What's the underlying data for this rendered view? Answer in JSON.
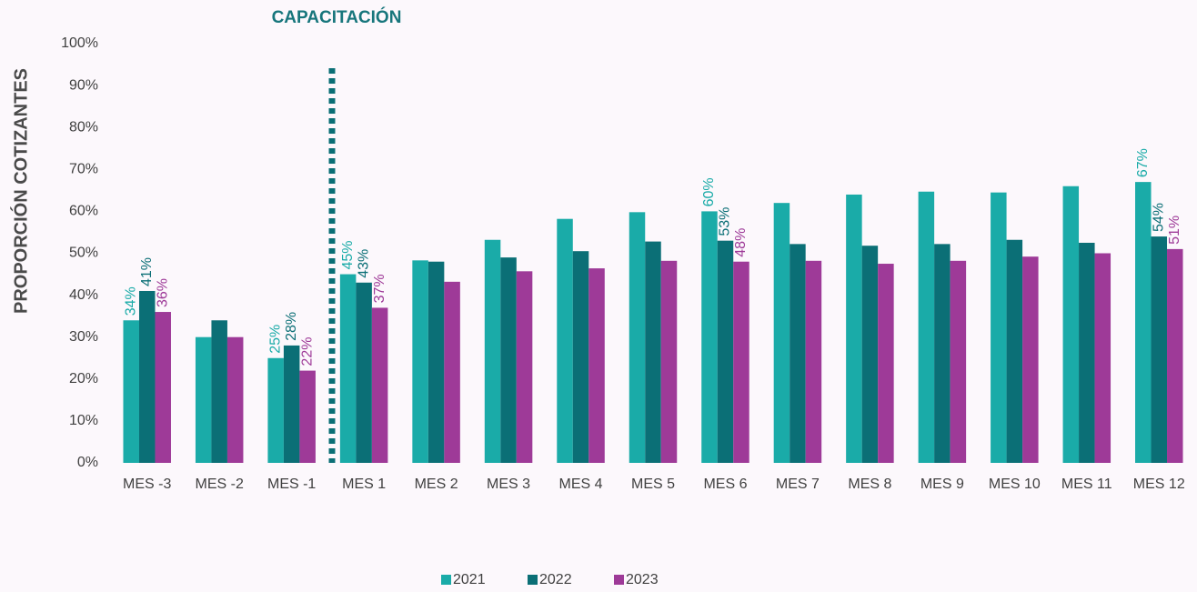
{
  "chart_data": {
    "type": "bar",
    "annotation": "CAPACITACIÓN",
    "y_label": "PROPORCIÓN COTIZANTES",
    "categories": [
      "MES -3",
      "MES -2",
      "MES -1",
      "MES 1",
      "MES 2",
      "MES 3",
      "MES 4",
      "MES 5",
      "MES 6",
      "MES 7",
      "MES 8",
      "MES 9",
      "MES 10",
      "MES 11",
      "MES 12"
    ],
    "series": [
      {
        "name": "2021",
        "color": "#1aaba8",
        "values": [
          34,
          30,
          25,
          45,
          48.3,
          53.2,
          58.2,
          59.8,
          60,
          62,
          64,
          64.7,
          64.5,
          66,
          67
        ],
        "value_labels": [
          "34%",
          null,
          "25%",
          "45%",
          null,
          null,
          null,
          null,
          "60%",
          null,
          null,
          null,
          null,
          null,
          "67%"
        ]
      },
      {
        "name": "2022",
        "color": "#0b6f76",
        "values": [
          41,
          34,
          28,
          43,
          48,
          49,
          50.5,
          52.8,
          53,
          52.2,
          51.8,
          52.2,
          53.2,
          52.5,
          54
        ],
        "value_labels": [
          "41%",
          null,
          "28%",
          "43%",
          null,
          null,
          null,
          null,
          "53%",
          null,
          null,
          null,
          null,
          null,
          "54%"
        ]
      },
      {
        "name": "2023",
        "color": "#9e3a98",
        "values": [
          36,
          30,
          22,
          37,
          43.2,
          45.7,
          46.4,
          48.2,
          48,
          48.2,
          47.5,
          48.2,
          49.2,
          50,
          51
        ],
        "value_labels": [
          "36%",
          null,
          "22%",
          "37%",
          null,
          null,
          null,
          null,
          "48%",
          null,
          null,
          null,
          null,
          null,
          "51%"
        ]
      }
    ],
    "ylim": [
      0,
      100
    ],
    "yticks": [
      {
        "value": 0,
        "label": "0%"
      },
      {
        "value": 10,
        "label": "10%"
      },
      {
        "value": 20,
        "label": "20%"
      },
      {
        "value": 30,
        "label": "30%"
      },
      {
        "value": 40,
        "label": "40%"
      },
      {
        "value": 50,
        "label": "50%"
      },
      {
        "value": 60,
        "label": "60%"
      },
      {
        "value": 70,
        "label": "70%"
      },
      {
        "value": 80,
        "label": "80%"
      },
      {
        "value": 90,
        "label": "90%"
      },
      {
        "value": 100,
        "label": "100%"
      }
    ],
    "legend": "bottom"
  }
}
